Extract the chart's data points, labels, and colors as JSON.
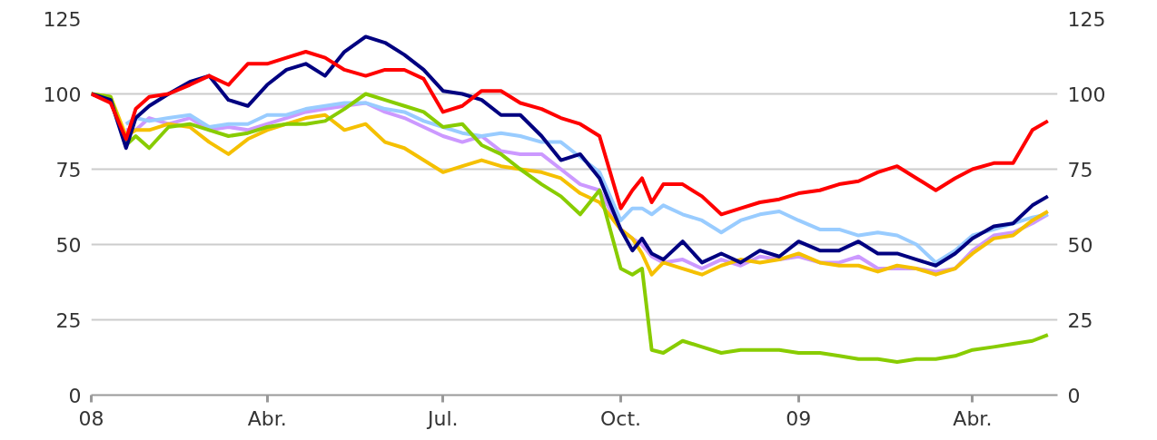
{
  "chart_data": {
    "type": "line",
    "x": [
      "2008-01-01",
      "2008-01-11",
      "2008-01-19",
      "2008-01-24",
      "2008-01-31",
      "2008-02-10",
      "2008-02-21",
      "2008-03-02",
      "2008-03-12",
      "2008-03-22",
      "2008-04-01",
      "2008-04-11",
      "2008-04-21",
      "2008-05-01",
      "2008-05-11",
      "2008-05-22",
      "2008-06-01",
      "2008-06-11",
      "2008-06-21",
      "2008-07-01",
      "2008-07-11",
      "2008-07-21",
      "2008-07-31",
      "2008-08-10",
      "2008-08-21",
      "2008-08-31",
      "2008-09-10",
      "2008-09-20",
      "2008-10-01",
      "2008-10-07",
      "2008-10-12",
      "2008-10-17",
      "2008-10-23",
      "2008-11-02",
      "2008-11-12",
      "2008-11-22",
      "2008-12-02",
      "2008-12-12",
      "2008-12-22",
      "2009-01-01",
      "2009-01-12",
      "2009-01-22",
      "2009-02-01",
      "2009-02-11",
      "2009-02-21",
      "2009-03-03",
      "2009-03-13",
      "2009-03-23",
      "2009-04-01",
      "2009-04-12",
      "2009-04-22",
      "2009-05-02",
      "2009-05-10"
    ],
    "series": [
      {
        "color": "#cc99ff",
        "values": [
          null,
          null,
          88,
          88,
          92,
          90,
          92,
          88,
          89,
          88,
          90,
          92,
          94,
          95,
          96,
          97,
          94,
          92,
          89,
          86,
          84,
          86,
          81,
          80,
          80,
          75,
          70,
          68,
          55,
          52,
          50,
          46,
          44,
          45,
          42,
          45,
          43,
          46,
          45,
          46,
          44,
          44,
          46,
          42,
          42,
          42,
          41,
          42,
          48,
          53,
          54,
          57,
          60
        ]
      },
      {
        "color": "#99ccff",
        "values": [
          null,
          null,
          90,
          92,
          91,
          92,
          93,
          89,
          90,
          90,
          93,
          93,
          95,
          96,
          97,
          97,
          95,
          94,
          91,
          89,
          87,
          86,
          87,
          86,
          84,
          84,
          79,
          74,
          58,
          62,
          62,
          60,
          63,
          60,
          58,
          54,
          58,
          60,
          61,
          58,
          55,
          55,
          53,
          54,
          53,
          50,
          44,
          48,
          53,
          55,
          57,
          59,
          60
        ]
      },
      {
        "color": "#f5c000",
        "values": [
          100,
          99,
          86,
          88,
          88,
          90,
          89,
          84,
          80,
          85,
          88,
          90,
          92,
          93,
          88,
          90,
          84,
          82,
          78,
          74,
          76,
          78,
          76,
          75,
          74,
          72,
          67,
          64,
          55,
          52,
          47,
          40,
          44,
          42,
          40,
          43,
          45,
          44,
          45,
          47,
          44,
          43,
          43,
          41,
          43,
          42,
          40,
          42,
          47,
          52,
          53,
          58,
          61
        ]
      },
      {
        "color": "#88cc00",
        "values": [
          100,
          99,
          83,
          86,
          82,
          89,
          90,
          88,
          86,
          87,
          89,
          90,
          90,
          91,
          95,
          100,
          98,
          96,
          94,
          89,
          90,
          83,
          80,
          75,
          70,
          66,
          60,
          68,
          42,
          40,
          42,
          15,
          14,
          18,
          16,
          14,
          15,
          15,
          15,
          14,
          14,
          13,
          12,
          12,
          11,
          12,
          12,
          13,
          15,
          16,
          17,
          18,
          20
        ]
      },
      {
        "color": "#000080",
        "values": [
          100,
          98,
          82,
          92,
          96,
          100,
          104,
          106,
          98,
          96,
          103,
          108,
          110,
          106,
          114,
          119,
          117,
          113,
          108,
          101,
          100,
          98,
          93,
          93,
          86,
          78,
          80,
          72,
          55,
          48,
          52,
          47,
          45,
          51,
          44,
          47,
          44,
          48,
          46,
          51,
          48,
          48,
          51,
          47,
          47,
          45,
          43,
          47,
          52,
          56,
          57,
          63,
          66
        ]
      },
      {
        "color": "#ff0000",
        "values": [
          100,
          97,
          85,
          95,
          99,
          100,
          103,
          106,
          103,
          110,
          110,
          112,
          114,
          112,
          108,
          106,
          108,
          108,
          105,
          94,
          96,
          101,
          101,
          97,
          95,
          92,
          90,
          86,
          62,
          68,
          72,
          64,
          70,
          70,
          66,
          60,
          62,
          64,
          65,
          67,
          68,
          70,
          71,
          74,
          76,
          72,
          68,
          72,
          75,
          77,
          77,
          88,
          91
        ]
      }
    ],
    "xlim": [
      "2008-01-01",
      "2009-05-15"
    ],
    "xticks": [
      {
        "value": "2008-01-01",
        "label": "08"
      },
      {
        "value": "2008-04-01",
        "label": "Abr."
      },
      {
        "value": "2008-07-01",
        "label": "Jul."
      },
      {
        "value": "2008-10-01",
        "label": "Oct."
      },
      {
        "value": "2009-01-01",
        "label": "09"
      },
      {
        "value": "2009-04-01",
        "label": "Abr."
      }
    ],
    "ylim": [
      0,
      125
    ],
    "yticks": [
      0,
      25,
      50,
      75,
      100,
      125
    ],
    "y2lim": [
      0,
      125
    ],
    "y2ticks": [
      0,
      25,
      50,
      75,
      100,
      125
    ],
    "grid": "y",
    "marker": "none",
    "line_style": "solid"
  }
}
